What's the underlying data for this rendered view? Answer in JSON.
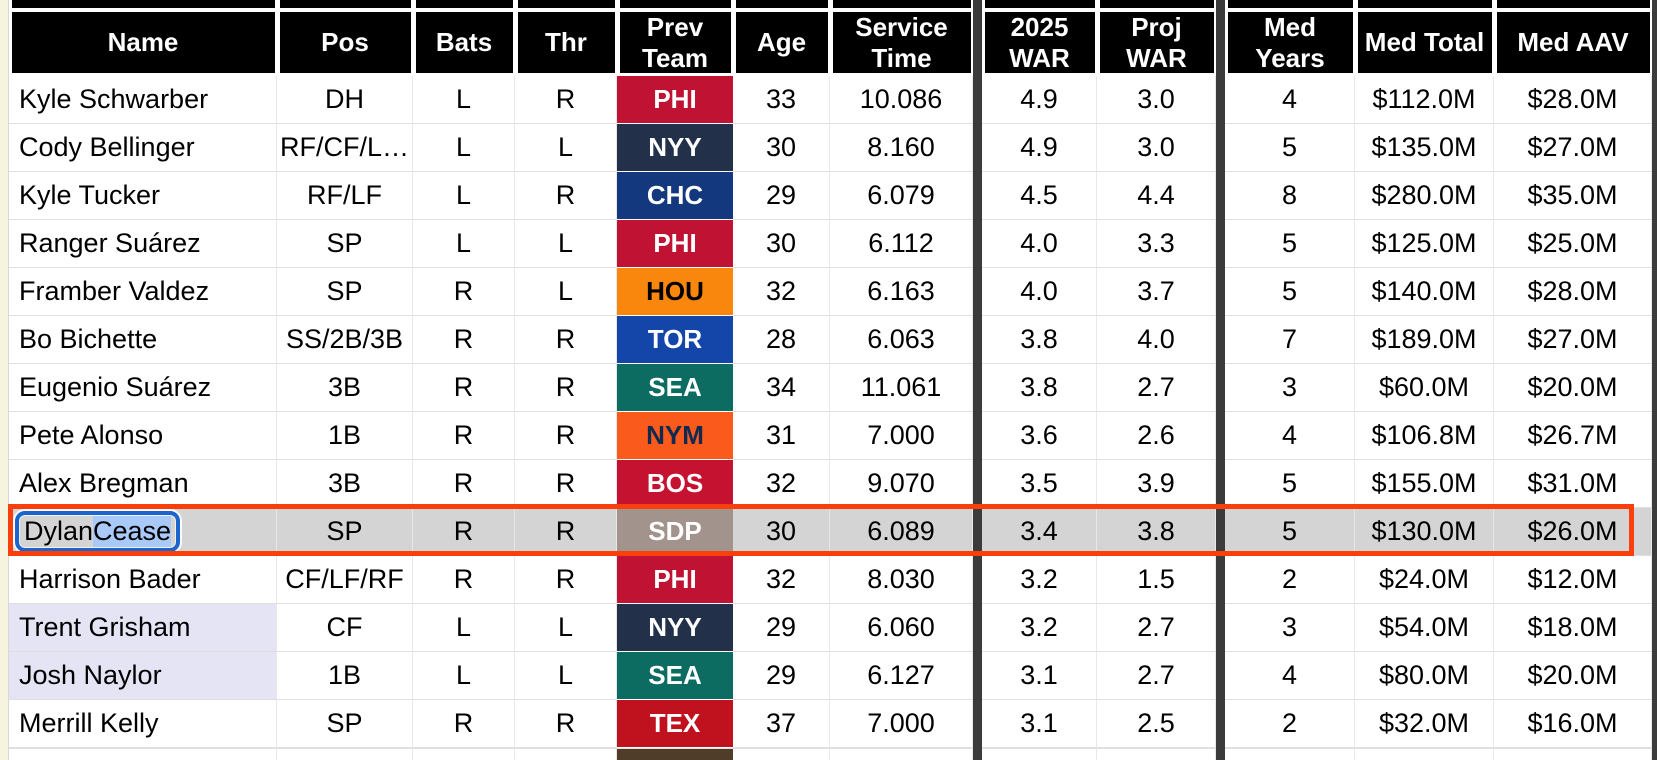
{
  "theme": {
    "page_bg": "#F6F4DE",
    "header_bg": "#000000",
    "header_fg": "#FFFFFF",
    "divider_color": "#3B3B3B",
    "selected_row_bg": "#D4D4D4",
    "selected_row_border": "#FA3E0C",
    "focus_ring_color": "#1A66CE",
    "text_selection_bg": "#A9C9F8",
    "highlighted_name_bg": "#E4E4F4",
    "row_border": "#DFDFDF"
  },
  "table": {
    "columns": [
      {
        "key": "name",
        "label": "Name"
      },
      {
        "key": "pos",
        "label": "Pos"
      },
      {
        "key": "bats",
        "label": "Bats"
      },
      {
        "key": "thr",
        "label": "Thr"
      },
      {
        "key": "team",
        "label": "Prev\nTeam"
      },
      {
        "key": "age",
        "label": "Age"
      },
      {
        "key": "service",
        "label": "Service\nTime"
      },
      {
        "key": "_slot1",
        "label": "",
        "slot": true
      },
      {
        "key": "war2025",
        "label": "2025\nWAR"
      },
      {
        "key": "projwar",
        "label": "Proj\nWAR"
      },
      {
        "key": "_slot2",
        "label": "",
        "slot": true
      },
      {
        "key": "medyears",
        "label": "Med Years"
      },
      {
        "key": "medtotal",
        "label": "Med Total"
      },
      {
        "key": "medaav",
        "label": "Med AAV"
      }
    ],
    "rows": [
      {
        "name": "Kyle Schwarber",
        "pos": "DH",
        "bats": "L",
        "thr": "R",
        "team": "PHI",
        "team_bg": "#C01334",
        "team_fg": "#FFFFFF",
        "age": "33",
        "service": "10.086",
        "war2025": "4.9",
        "projwar": "3.0",
        "medyears": "4",
        "medtotal": "$112.0M",
        "medaav": "$28.0M"
      },
      {
        "name": "Cody Bellinger",
        "pos": "RF/CF/L…",
        "bats": "L",
        "thr": "L",
        "team": "NYY",
        "team_bg": "#22304A",
        "team_fg": "#FFFFFF",
        "age": "30",
        "service": "8.160",
        "war2025": "4.9",
        "projwar": "3.0",
        "medyears": "5",
        "medtotal": "$135.0M",
        "medaav": "$27.0M"
      },
      {
        "name": "Kyle Tucker",
        "pos": "RF/LF",
        "bats": "L",
        "thr": "R",
        "team": "CHC",
        "team_bg": "#14387E",
        "team_fg": "#FFFFFF",
        "age": "29",
        "service": "6.079",
        "war2025": "4.5",
        "projwar": "4.4",
        "medyears": "8",
        "medtotal": "$280.0M",
        "medaav": "$35.0M"
      },
      {
        "name": "Ranger Suárez",
        "pos": "SP",
        "bats": "L",
        "thr": "L",
        "team": "PHI",
        "team_bg": "#C01334",
        "team_fg": "#FFFFFF",
        "age": "30",
        "service": "6.112",
        "war2025": "4.0",
        "projwar": "3.3",
        "medyears": "5",
        "medtotal": "$125.0M",
        "medaav": "$25.0M"
      },
      {
        "name": "Framber Valdez",
        "pos": "SP",
        "bats": "R",
        "thr": "L",
        "team": "HOU",
        "team_bg": "#F9870D",
        "team_fg": "#000000",
        "age": "32",
        "service": "6.163",
        "war2025": "4.0",
        "projwar": "3.7",
        "medyears": "5",
        "medtotal": "$140.0M",
        "medaav": "$28.0M"
      },
      {
        "name": "Bo Bichette",
        "pos": "SS/2B/3B",
        "bats": "R",
        "thr": "R",
        "team": "TOR",
        "team_bg": "#1346A8",
        "team_fg": "#FFFFFF",
        "age": "28",
        "service": "6.063",
        "war2025": "3.8",
        "projwar": "4.0",
        "medyears": "7",
        "medtotal": "$189.0M",
        "medaav": "$27.0M"
      },
      {
        "name": "Eugenio Suárez",
        "pos": "3B",
        "bats": "R",
        "thr": "R",
        "team": "SEA",
        "team_bg": "#0C6C62",
        "team_fg": "#FFFFFF",
        "age": "34",
        "service": "11.061",
        "war2025": "3.8",
        "projwar": "2.7",
        "medyears": "3",
        "medtotal": "$60.0M",
        "medaav": "$20.0M"
      },
      {
        "name": "Pete Alonso",
        "pos": "1B",
        "bats": "R",
        "thr": "R",
        "team": "NYM",
        "team_bg": "#FA5A1C",
        "team_fg": "#10294F",
        "age": "31",
        "service": "7.000",
        "war2025": "3.6",
        "projwar": "2.6",
        "medyears": "4",
        "medtotal": "$106.8M",
        "medaav": "$26.7M"
      },
      {
        "name": "Alex Bregman",
        "pos": "3B",
        "bats": "R",
        "thr": "R",
        "team": "BOS",
        "team_bg": "#C51230",
        "team_fg": "#FFFFFF",
        "age": "32",
        "service": "9.070",
        "war2025": "3.5",
        "projwar": "3.9",
        "medyears": "5",
        "medtotal": "$155.0M",
        "medaav": "$31.0M"
      },
      {
        "name": "Dylan Cease",
        "pos": "SP",
        "bats": "R",
        "thr": "R",
        "team": "SDP",
        "team_bg": "#A2938C",
        "team_fg": "#FFFFFF",
        "age": "30",
        "service": "6.089",
        "war2025": "3.4",
        "projwar": "3.8",
        "medyears": "5",
        "medtotal": "$130.0M",
        "medaav": "$26.0M",
        "selected": true
      },
      {
        "name": "Harrison Bader",
        "pos": "CF/LF/RF",
        "bats": "R",
        "thr": "R",
        "team": "PHI",
        "team_bg": "#C01334",
        "team_fg": "#FFFFFF",
        "age": "32",
        "service": "8.030",
        "war2025": "3.2",
        "projwar": "1.5",
        "medyears": "2",
        "medtotal": "$24.0M",
        "medaav": "$12.0M"
      },
      {
        "name": "Trent Grisham",
        "pos": "CF",
        "bats": "L",
        "thr": "L",
        "team": "NYY",
        "team_bg": "#22304A",
        "team_fg": "#FFFFFF",
        "age": "29",
        "service": "6.060",
        "war2025": "3.2",
        "projwar": "2.7",
        "medyears": "3",
        "medtotal": "$54.0M",
        "medaav": "$18.0M",
        "name_highlight": true
      },
      {
        "name": "Josh Naylor",
        "pos": "1B",
        "bats": "L",
        "thr": "L",
        "team": "SEA",
        "team_bg": "#0C6C62",
        "team_fg": "#FFFFFF",
        "age": "29",
        "service": "6.127",
        "war2025": "3.1",
        "projwar": "2.7",
        "medyears": "4",
        "medtotal": "$80.0M",
        "medaav": "$20.0M",
        "name_highlight": true
      },
      {
        "name": "Merrill Kelly",
        "pos": "SP",
        "bats": "R",
        "thr": "R",
        "team": "TEX",
        "team_bg": "#C0111F",
        "team_fg": "#FFFFFF",
        "age": "37",
        "service": "7.000",
        "war2025": "3.1",
        "projwar": "2.5",
        "medyears": "2",
        "medtotal": "$32.0M",
        "medaav": "$16.0M"
      }
    ],
    "partial_row": {
      "team_bg": "#4F3D2A"
    },
    "selection": {
      "row_name": "Dylan Cease",
      "name_part_plain": "Dylan ",
      "name_part_selected": "Cease"
    }
  }
}
